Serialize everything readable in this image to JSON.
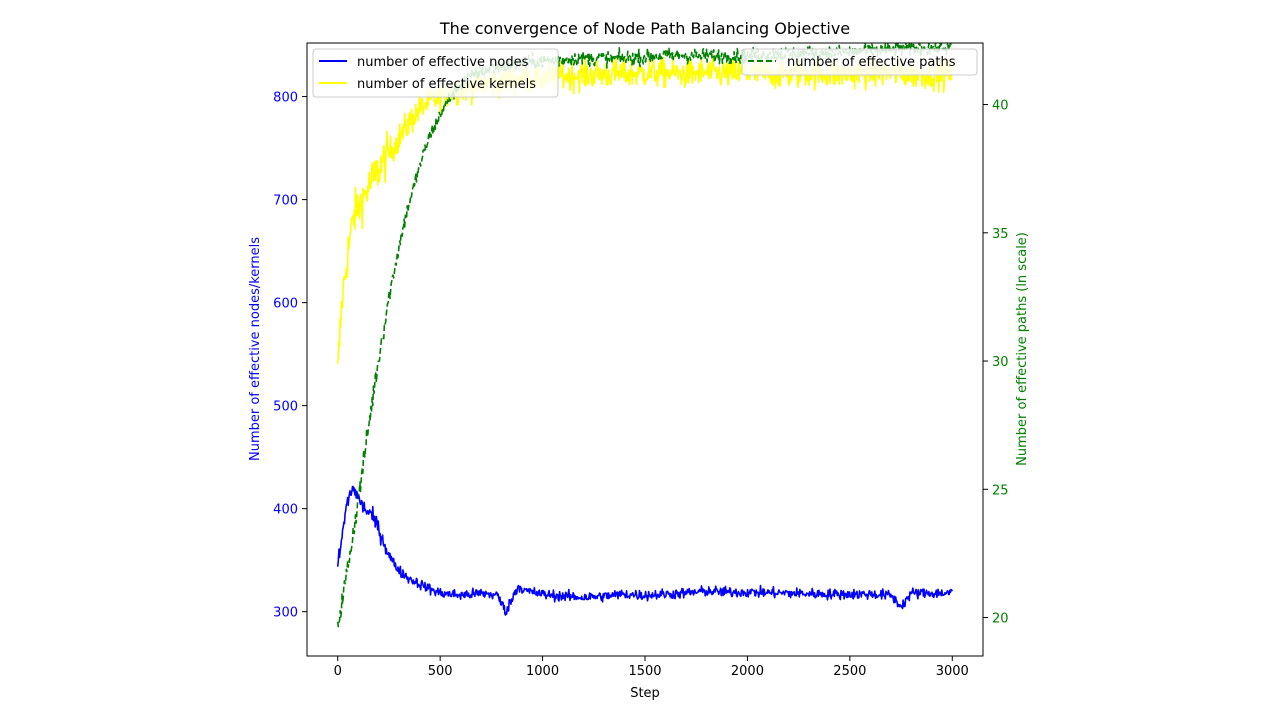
{
  "chart_data": {
    "type": "line",
    "title": "The convergence of Node Path Balancing Objective",
    "xlabel": "Step",
    "ylabel_left": "Number of effective nodes/kernels",
    "ylabel_right": "Number of effective paths (ln scale)",
    "xlim": [
      -150,
      3150
    ],
    "ylim_left": [
      257,
      852
    ],
    "ylim_right": [
      18.5,
      42.4
    ],
    "x_ticks": [
      0,
      500,
      1000,
      1500,
      2000,
      2500,
      3000
    ],
    "y_ticks_left": [
      300,
      400,
      500,
      600,
      700,
      800
    ],
    "y_ticks_right": [
      20,
      25,
      30,
      35,
      40
    ],
    "colors": {
      "left_axis": "#0000ff",
      "right_axis": "#008000"
    },
    "legend_left": {
      "position": "top-left",
      "entries": [
        {
          "label": "number of effective nodes",
          "color": "#0000ff",
          "style": "solid"
        },
        {
          "label": "number of effective kernels",
          "color": "#ffff00",
          "style": "solid"
        }
      ]
    },
    "legend_right": {
      "position": "top-right",
      "entries": [
        {
          "label": "number of effective paths",
          "color": "#008000",
          "style": "dashed"
        }
      ]
    },
    "series": [
      {
        "name": "number of effective kernels",
        "axis": "left",
        "color": "#ffff00",
        "style": "solid",
        "x": [
          0,
          20,
          50,
          80,
          120,
          160,
          200,
          250,
          300,
          350,
          400,
          450,
          500,
          550,
          600,
          700,
          800,
          900,
          1000,
          1100,
          1200,
          1300,
          1400,
          1500,
          1600,
          1700,
          1800,
          1900,
          2000,
          2100,
          2200,
          2300,
          2400,
          2500,
          2600,
          2700,
          2800,
          2900,
          3000
        ],
        "y": [
          530,
          600,
          650,
          685,
          700,
          715,
          730,
          745,
          760,
          775,
          788,
          795,
          800,
          805,
          808,
          812,
          815,
          817,
          818,
          820,
          821,
          822,
          822,
          823,
          823,
          822,
          823,
          822,
          823,
          822,
          822,
          823,
          822,
          822,
          823,
          823,
          822,
          822,
          822
        ],
        "noise": 14
      },
      {
        "name": "number of effective paths",
        "axis": "right",
        "color": "#008000",
        "style": "dashed",
        "x": [
          0,
          25,
          50,
          75,
          100,
          125,
          150,
          175,
          200,
          225,
          250,
          275,
          300,
          325,
          350,
          375,
          400,
          425,
          450,
          500,
          550,
          600,
          650,
          700,
          800,
          900,
          1000,
          1200,
          1400,
          1600,
          1800,
          2000,
          2200,
          2400,
          2600,
          2800,
          3000
        ],
        "y": [
          19.7,
          20.8,
          22.0,
          23.3,
          24.6,
          26.0,
          27.4,
          28.8,
          30.1,
          31.3,
          32.5,
          33.5,
          34.5,
          35.4,
          36.2,
          36.9,
          37.6,
          38.2,
          38.8,
          39.6,
          40.3,
          40.8,
          41.1,
          41.3,
          41.5,
          41.6,
          41.7,
          41.8,
          41.8,
          41.9,
          41.9,
          41.9,
          42.0,
          42.0,
          42.1,
          42.2,
          42.2
        ],
        "noise": 0.28
      },
      {
        "name": "number of effective nodes",
        "axis": "left",
        "color": "#0000ff",
        "style": "solid",
        "x": [
          0,
          20,
          40,
          60,
          80,
          100,
          130,
          160,
          190,
          220,
          250,
          280,
          310,
          350,
          400,
          450,
          500,
          600,
          700,
          780,
          820,
          850,
          880,
          920,
          1000,
          1100,
          1200,
          1300,
          1400,
          1500,
          1600,
          1700,
          1800,
          1900,
          2000,
          2200,
          2400,
          2600,
          2700,
          2750,
          2800,
          2900,
          3000
        ],
        "y": [
          345,
          370,
          400,
          415,
          420,
          410,
          400,
          395,
          385,
          370,
          355,
          345,
          338,
          332,
          327,
          322,
          318,
          316,
          318,
          316,
          300,
          312,
          325,
          320,
          317,
          315,
          314,
          315,
          317,
          316,
          317,
          318,
          320,
          319,
          319,
          318,
          317,
          317,
          316,
          305,
          318,
          318,
          318
        ],
        "noise": 5
      }
    ]
  }
}
